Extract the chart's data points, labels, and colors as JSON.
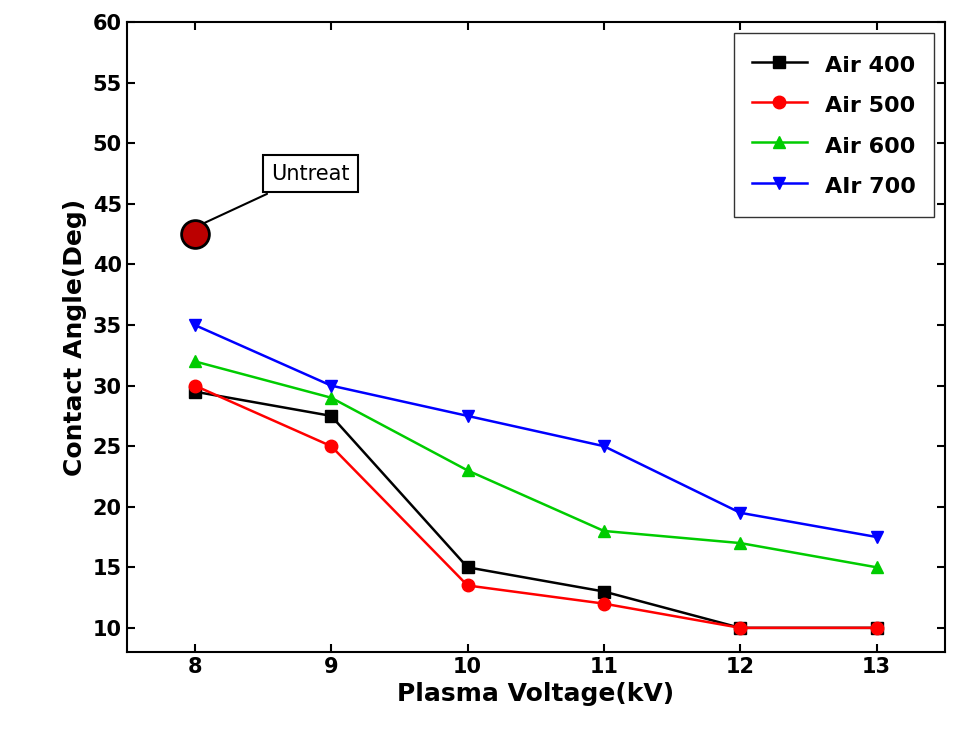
{
  "x": [
    8,
    9,
    10,
    11,
    12,
    13
  ],
  "air400": [
    29.5,
    27.5,
    15.0,
    13.0,
    10.0,
    10.0
  ],
  "air500": [
    30.0,
    25.0,
    13.5,
    12.0,
    10.0,
    10.0
  ],
  "air600": [
    32.0,
    29.0,
    23.0,
    18.0,
    17.0,
    15.0
  ],
  "air700": [
    35.0,
    30.0,
    27.5,
    25.0,
    19.5,
    17.5
  ],
  "untreat_x": 8,
  "untreat_y": 42.5,
  "xlim": [
    7.5,
    13.5
  ],
  "ylim": [
    8,
    60
  ],
  "xticks": [
    8,
    9,
    10,
    11,
    12,
    13
  ],
  "yticks": [
    10,
    15,
    20,
    25,
    30,
    35,
    40,
    45,
    50,
    55,
    60
  ],
  "xlabel": "Plasma Voltage(kV)",
  "ylabel": "Contact Angle(Deg)",
  "legend_labels": [
    "Air 400",
    "Air 500",
    "Air 600",
    "AIr 700"
  ],
  "colors": [
    "#000000",
    "#ff0000",
    "#00cc00",
    "#0000ff"
  ],
  "markers": [
    "s",
    "o",
    "^",
    "v"
  ],
  "untreat_label": "Untreat",
  "background_color": "#ffffff",
  "tick_fontsize": 15,
  "label_fontsize": 18,
  "legend_fontsize": 16
}
